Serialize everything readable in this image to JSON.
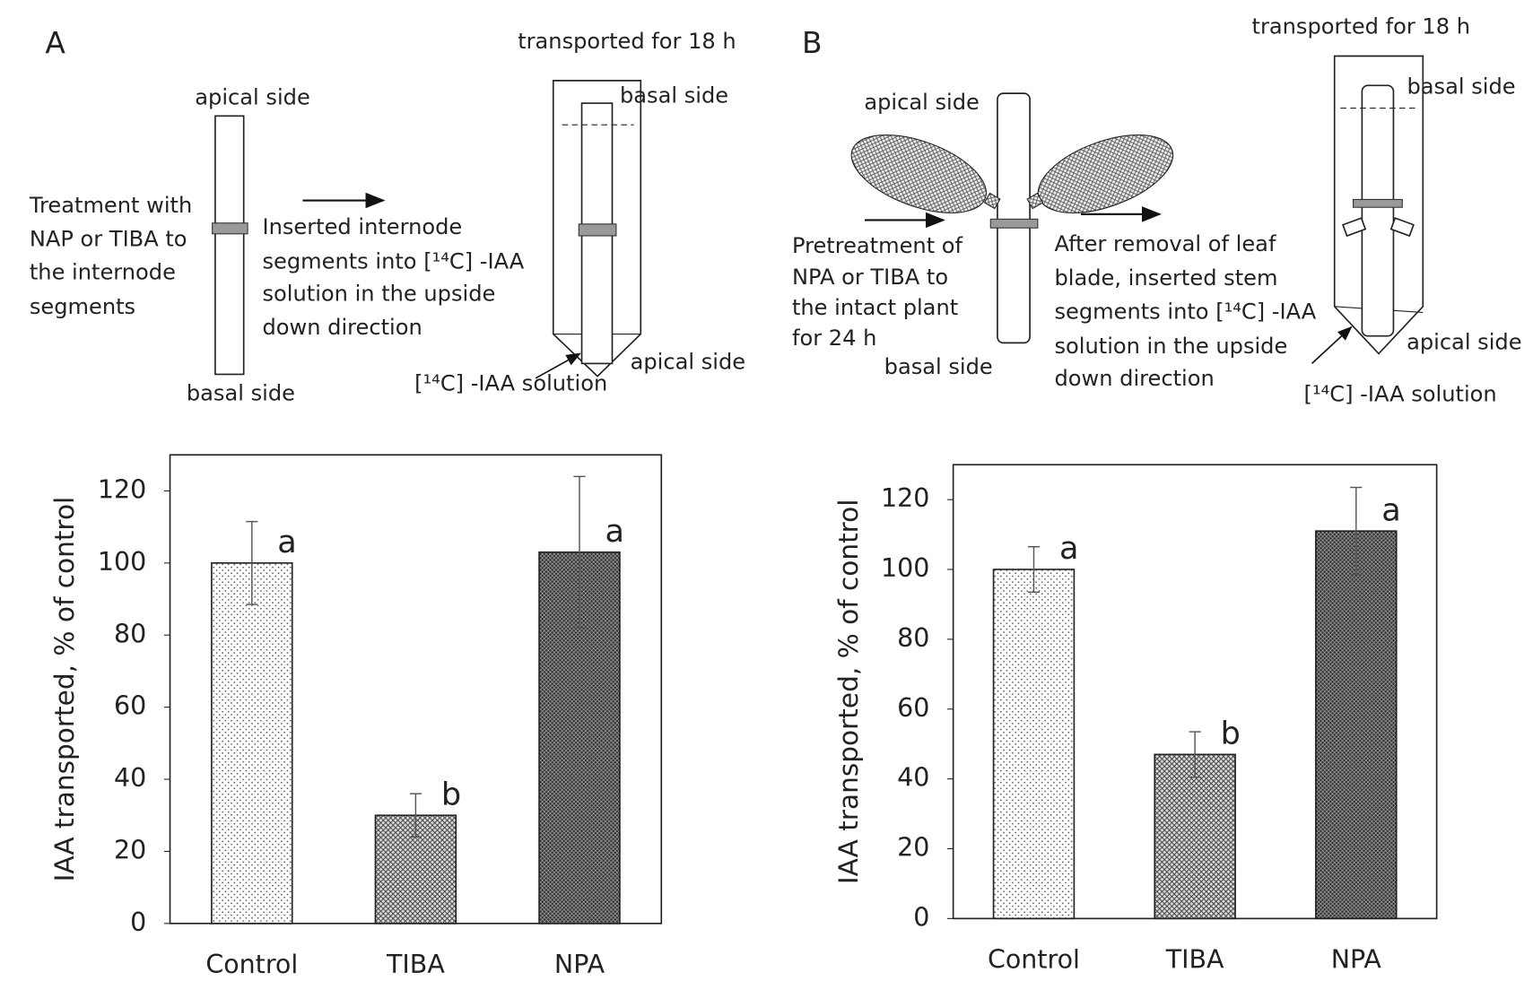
{
  "diagram": {
    "a": {
      "panel": "A",
      "time": "transported for 18 h",
      "apical_top": "apical side",
      "basal_bottom": "basal side",
      "treatment": [
        "Treatment with",
        " NAP or TIBA to",
        "the internode",
        "segments"
      ],
      "step": [
        "Inserted internode",
        "segments into [¹⁴C] -IAA",
        "solution  in the upside",
        "down direction"
      ],
      "tube_basal": "basal side",
      "tube_apical": "apical side",
      "solution": "[¹⁴C] -IAA solution"
    },
    "b": {
      "panel": "B",
      "time": "transported for 18 h",
      "apical_top": "apical side",
      "basal_bottom": "basal side",
      "treatment": [
        "Pretreatment  of",
        "NPA or TIBA to",
        "the intact plant",
        "for 24 h"
      ],
      "step": [
        "After removal of leaf",
        "blade, inserted stem",
        "segments into [¹⁴C] -IAA",
        "solution  in the upside",
        "down direction"
      ],
      "tube_basal": "basal side",
      "tube_apical": "apical side",
      "solution": "[¹⁴C] -IAA solution"
    }
  },
  "chart_data": [
    {
      "type": "bar",
      "y_label": "IAA transported, % of control",
      "categories": [
        "Control",
        "TIBA",
        "NPA"
      ],
      "values": [
        100,
        30,
        103
      ],
      "errors": [
        11.5,
        6,
        21
      ],
      "annotations": [
        "a",
        "b",
        "a"
      ],
      "fills": [
        "dots",
        "crosshatch",
        "dense-crosshatch"
      ],
      "ylim": [
        0,
        130
      ],
      "yticks": [
        0,
        20,
        40,
        60,
        80,
        100,
        120
      ]
    },
    {
      "type": "bar",
      "y_label": "IAA transported, % of control",
      "categories": [
        "Control",
        "TIBA",
        "NPA"
      ],
      "values": [
        100,
        47,
        111
      ],
      "errors": [
        6.5,
        6.5,
        12.5
      ],
      "annotations": [
        "a",
        "b",
        "a"
      ],
      "fills": [
        "dots",
        "crosshatch",
        "dense-crosshatch"
      ],
      "ylim": [
        0,
        130
      ],
      "yticks": [
        0,
        20,
        40,
        60,
        80,
        100,
        120
      ]
    }
  ]
}
